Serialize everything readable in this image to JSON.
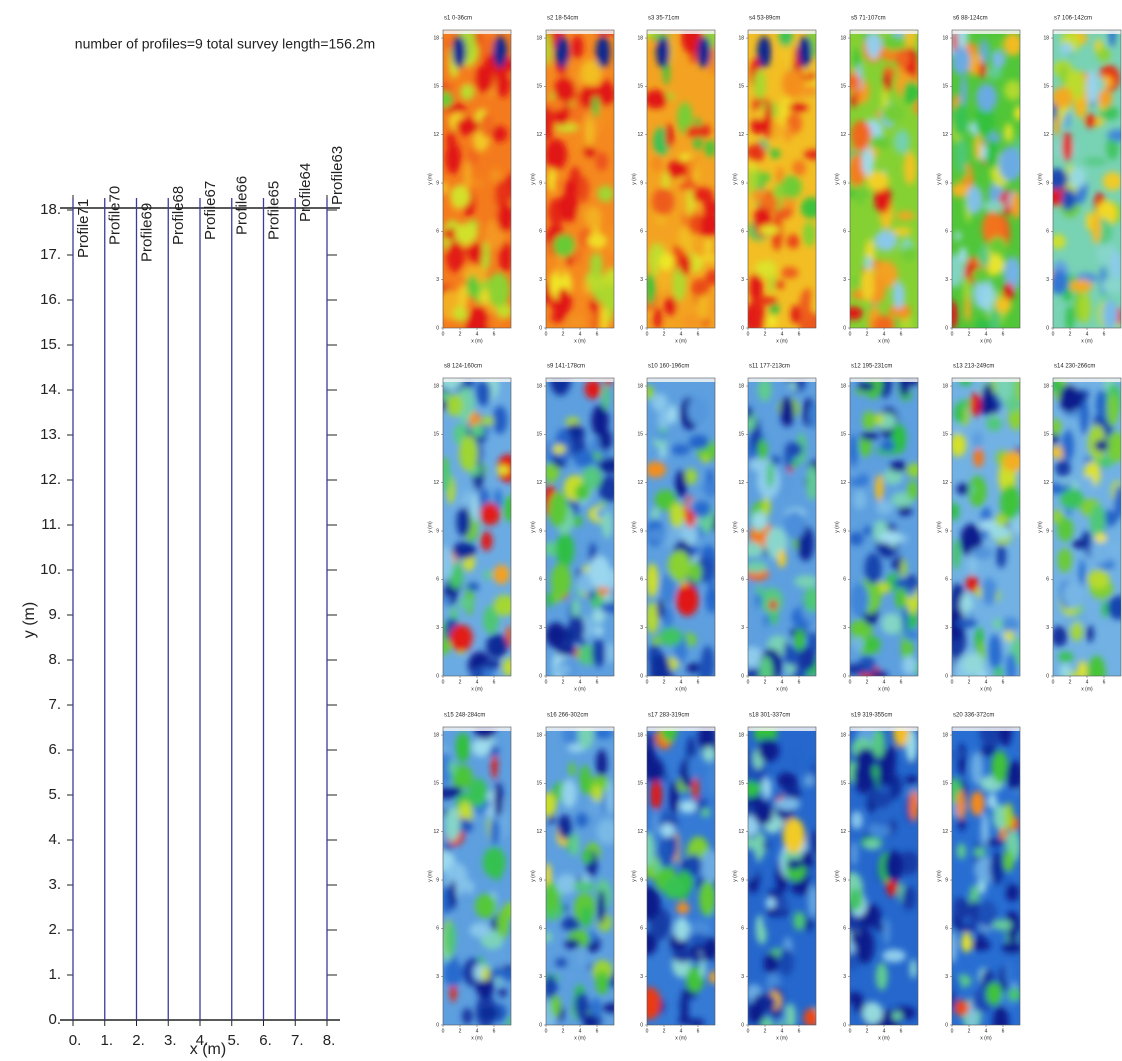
{
  "chart_data": [
    {
      "type": "profile-map",
      "title": "number of profiles=9   total survey length=156.2m",
      "xlabel": "x (m)",
      "ylabel": "y (m)",
      "xlim": [
        0,
        8
      ],
      "ylim": [
        0,
        18
      ],
      "xticks": [
        {
          "value": 0,
          "label": "0."
        },
        {
          "value": 1,
          "label": "1."
        },
        {
          "value": 2,
          "label": "2."
        },
        {
          "value": 3,
          "label": "3."
        },
        {
          "value": 4,
          "label": "4."
        },
        {
          "value": 5,
          "label": "5."
        },
        {
          "value": 6,
          "label": "6."
        },
        {
          "value": 7,
          "label": "7."
        },
        {
          "value": 8,
          "label": "8."
        }
      ],
      "yticks": [
        {
          "value": 0,
          "label": "0."
        },
        {
          "value": 1,
          "label": "1."
        },
        {
          "value": 2,
          "label": "2."
        },
        {
          "value": 3,
          "label": "3."
        },
        {
          "value": 4,
          "label": "4."
        },
        {
          "value": 5,
          "label": "5."
        },
        {
          "value": 6,
          "label": "6."
        },
        {
          "value": 7,
          "label": "7."
        },
        {
          "value": 8,
          "label": "8."
        },
        {
          "value": 9,
          "label": "9."
        },
        {
          "value": 10,
          "label": "10."
        },
        {
          "value": 11,
          "label": "11."
        },
        {
          "value": 12,
          "label": "12."
        },
        {
          "value": 13,
          "label": "13."
        },
        {
          "value": 14,
          "label": "14."
        },
        {
          "value": 15,
          "label": "15."
        },
        {
          "value": 16,
          "label": "16."
        },
        {
          "value": 17,
          "label": "17."
        },
        {
          "value": 18,
          "label": "18."
        }
      ],
      "color": "#3b3b9c",
      "profiles": [
        {
          "name": "Profile71",
          "x": 0
        },
        {
          "name": "Profile70",
          "x": 1
        },
        {
          "name": "Profile69",
          "x": 2
        },
        {
          "name": "Profile68",
          "x": 3
        },
        {
          "name": "Profile67",
          "x": 4
        },
        {
          "name": "Profile66",
          "x": 5
        },
        {
          "name": "Profile65",
          "x": 6
        },
        {
          "name": "Profile64",
          "x": 7
        },
        {
          "name": "Profile63",
          "x": 8
        }
      ]
    },
    {
      "type": "heatmap",
      "xlabel": "x (m)",
      "ylabel": "y (m)",
      "xlim": [
        0,
        8
      ],
      "ylim": [
        0,
        18.5
      ],
      "xticks": [
        0,
        2,
        4,
        6
      ],
      "yticks": [
        0,
        3,
        6,
        9,
        12,
        15,
        18
      ],
      "panels": [
        {
          "title": "s1 0-36cm"
        },
        {
          "title": "s2 18-54cm"
        },
        {
          "title": "s3 35-71cm"
        },
        {
          "title": "s4 53-89cm"
        },
        {
          "title": "s5 71-107cm"
        },
        {
          "title": "s6 88-124cm"
        },
        {
          "title": "s7 106-142cm"
        },
        {
          "title": "s8 124-160cm"
        },
        {
          "title": "s9 141-178cm"
        },
        {
          "title": "s10 160-196cm"
        },
        {
          "title": "s11 177-213cm"
        },
        {
          "title": "s12 195-231cm"
        },
        {
          "title": "s13 213-249cm"
        },
        {
          "title": "s14 230-266cm"
        },
        {
          "title": "s15 248-284cm"
        },
        {
          "title": "s16 266-302cm"
        },
        {
          "title": "s17 283-319cm"
        },
        {
          "title": "s18 301-337cm"
        },
        {
          "title": "s19 319-355cm"
        },
        {
          "title": "s20 336-372cm"
        }
      ]
    }
  ]
}
